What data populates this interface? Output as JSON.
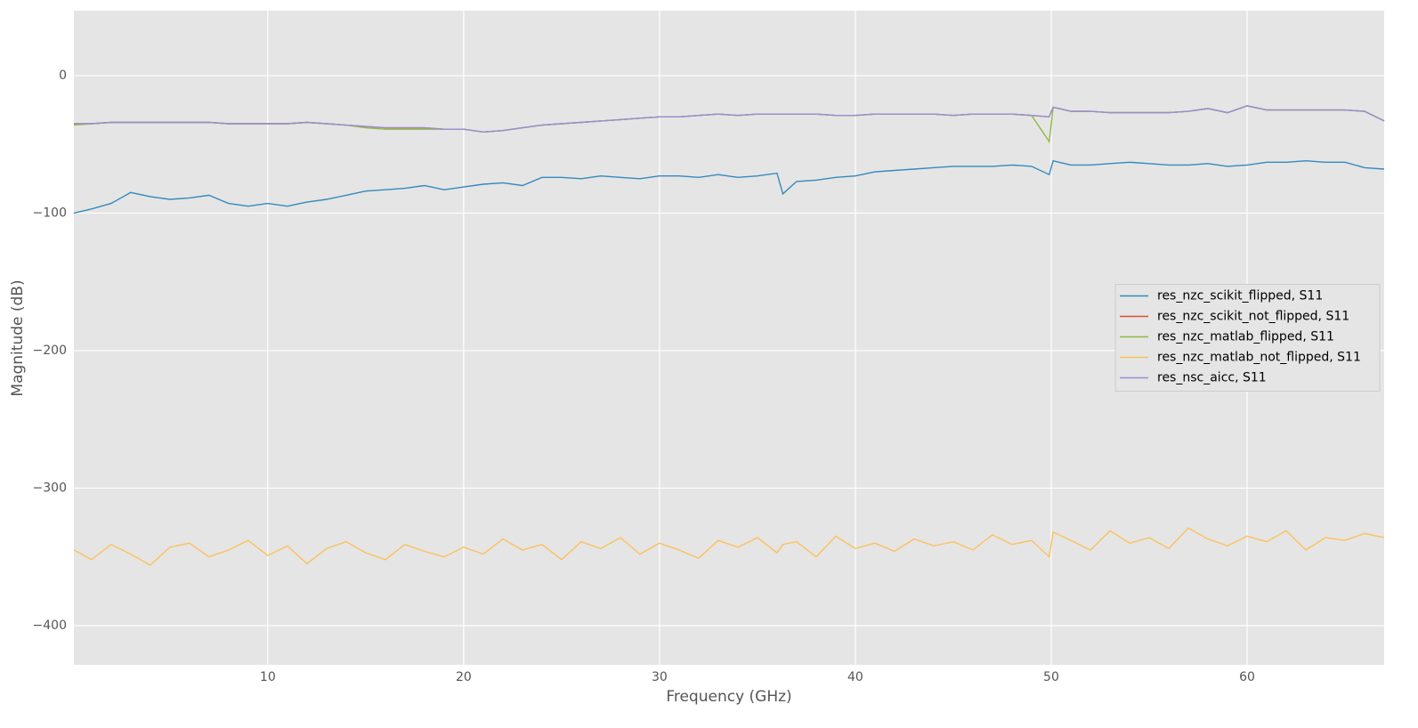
{
  "chart_data": {
    "type": "line",
    "xlabel": "Frequency (GHz)",
    "ylabel": "Magnitude (dB)",
    "xlim": [
      0.1,
      67
    ],
    "ylim": [
      -428.5,
      47.2
    ],
    "xticks": [
      10,
      20,
      30,
      40,
      50,
      60
    ],
    "yticks": [
      0,
      {
        "value": -100,
        "label": "−100"
      },
      {
        "value": -200,
        "label": "−200"
      },
      {
        "value": -300,
        "label": "−300"
      },
      {
        "value": -400,
        "label": "−400"
      }
    ],
    "grid": true,
    "legend": "center right",
    "x": [
      0.1,
      1,
      2,
      3,
      4,
      5,
      6,
      7,
      8,
      9,
      10,
      11,
      12,
      13,
      14,
      15,
      16,
      17,
      18,
      19,
      20,
      21,
      22,
      23,
      24,
      25,
      26,
      27,
      28,
      29,
      30,
      31,
      32,
      33,
      34,
      35,
      36,
      36.3,
      37,
      38,
      39,
      40,
      41,
      42,
      43,
      44,
      45,
      46,
      47,
      48,
      49,
      49.9,
      50.1,
      51,
      52,
      53,
      54,
      55,
      56,
      57,
      58,
      59,
      60,
      61,
      62,
      63,
      64,
      65,
      66,
      67
    ],
    "series": [
      {
        "name": "res_nzc_scikit_flipped, S11",
        "color": "#348abd",
        "values": [
          -100,
          -97,
          -93,
          -85,
          -88,
          -90,
          -89,
          -87,
          -93,
          -95,
          -93,
          -95,
          -92,
          -90,
          -87,
          -84,
          -83,
          -82,
          -80,
          -83,
          -81,
          -79,
          -78,
          -80,
          -74,
          -74,
          -75,
          -73,
          -74,
          -75,
          -73,
          -73,
          -74,
          -72,
          -74,
          -73,
          -71,
          -86,
          -77,
          -76,
          -74,
          -73,
          -70,
          -69,
          -68,
          -67,
          -66,
          -66,
          -66,
          -65,
          -66,
          -72,
          -62,
          -65,
          -65,
          -64,
          -63,
          -64,
          -65,
          -65,
          -64,
          -66,
          -65,
          -63,
          -63,
          -62,
          -63,
          -63,
          -67,
          -68
        ]
      },
      {
        "name": "res_nzc_scikit_not_flipped, S11",
        "color": "#e24a33",
        "values": [
          -35,
          -35,
          -34,
          -34,
          -34,
          -34,
          -34,
          -34,
          -35,
          -35,
          -35,
          -35,
          -34,
          -35,
          -36,
          -37,
          -38,
          -38,
          -38,
          -39,
          -39,
          -41,
          -40,
          -38,
          -36,
          -35,
          -34,
          -33,
          -32,
          -31,
          -30,
          -30,
          -29,
          -28,
          -29,
          -28,
          -28,
          -28,
          -28,
          -28,
          -29,
          -29,
          -28,
          -28,
          -28,
          -28,
          -29,
          -28,
          -28,
          -28,
          -29,
          -30,
          -23,
          -26,
          -26,
          -27,
          -27,
          -27,
          -27,
          -26,
          -24,
          -27,
          -22,
          -25,
          -25,
          -25,
          -25,
          -25,
          -26,
          -33
        ]
      },
      {
        "name": "res_nzc_matlab_flipped, S11",
        "color": "#8eba42",
        "values": [
          -36,
          -35,
          -34,
          -34,
          -34,
          -34,
          -34,
          -34,
          -35,
          -35,
          -35,
          -35,
          -34,
          -35,
          -36,
          -38,
          -39,
          -39,
          -39,
          -39,
          -39,
          -41,
          -40,
          -38,
          -36,
          -35,
          -34,
          -33,
          -32,
          -31,
          -30,
          -30,
          -29,
          -28,
          -29,
          -28,
          -28,
          -28,
          -28,
          -28,
          -29,
          -29,
          -28,
          -28,
          -28,
          -28,
          -29,
          -28,
          -28,
          -28,
          -29,
          -48,
          -23,
          -26,
          -26,
          -27,
          -27,
          -27,
          -27,
          -26,
          -24,
          -27,
          -22,
          -25,
          -25,
          -25,
          -25,
          -25,
          -26,
          -33
        ]
      },
      {
        "name": "res_nzc_matlab_not_flipped, S11",
        "color": "#fbc15e",
        "values": [
          -345,
          -352,
          -341,
          -348,
          -356,
          -343,
          -340,
          -350,
          -345,
          -338,
          -349,
          -342,
          -355,
          -344,
          -339,
          -347,
          -352,
          -341,
          -346,
          -350,
          -343,
          -348,
          -337,
          -345,
          -341,
          -352,
          -339,
          -344,
          -336,
          -348,
          -340,
          -345,
          -351,
          -338,
          -343,
          -336,
          -347,
          -341,
          -339,
          -350,
          -335,
          -344,
          -340,
          -346,
          -337,
          -342,
          -339,
          -345,
          -334,
          -341,
          -338,
          -350,
          -332,
          -338,
          -345,
          -331,
          -340,
          -336,
          -344,
          -329,
          -337,
          -342,
          -335,
          -339,
          -331,
          -345,
          -336,
          -338,
          -333,
          -336
        ]
      },
      {
        "name": "res_nsc_aicc, S11",
        "color": "#988ed5",
        "values": [
          -35,
          -35,
          -34,
          -34,
          -34,
          -34,
          -34,
          -34,
          -35,
          -35,
          -35,
          -35,
          -34,
          -35,
          -36,
          -37,
          -38,
          -38,
          -38,
          -39,
          -39,
          -41,
          -40,
          -38,
          -36,
          -35,
          -34,
          -33,
          -32,
          -31,
          -30,
          -30,
          -29,
          -28,
          -29,
          -28,
          -28,
          -28,
          -28,
          -28,
          -29,
          -29,
          -28,
          -28,
          -28,
          -28,
          -29,
          -28,
          -28,
          -28,
          -29,
          -30,
          -23,
          -26,
          -26,
          -27,
          -27,
          -27,
          -27,
          -26,
          -24,
          -27,
          -22,
          -25,
          -25,
          -25,
          -25,
          -25,
          -26,
          -33
        ]
      }
    ]
  }
}
